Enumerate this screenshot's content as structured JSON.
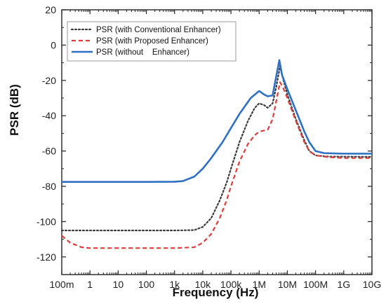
{
  "chart_data": {
    "type": "line",
    "xscale": "log",
    "xlabel": "Frequency (Hz)",
    "ylabel": "PSR (dB)",
    "xlim": [
      0.1,
      10000000000
    ],
    "ylim": [
      -130,
      20
    ],
    "grid": false,
    "legend_position": "top-left",
    "x_ticks": [
      0.1,
      1,
      10,
      100,
      1000,
      10000,
      100000,
      1000000,
      10000000,
      100000000,
      1000000000,
      10000000000
    ],
    "x_tick_labels": [
      "100m",
      "1",
      "10",
      "100",
      "1k",
      "10k",
      "100k",
      "1M",
      "10M",
      "100M",
      "1G",
      "10G"
    ],
    "y_ticks": [
      20,
      0,
      -20,
      -40,
      -60,
      -80,
      -100,
      -120
    ],
    "y_tick_labels": [
      "20",
      "0",
      "-20",
      "-40",
      "-60",
      "-80",
      "-100",
      "-120"
    ],
    "series": [
      {
        "name": "PSR (with Conventional Enhancer)",
        "color": "#3a3a3a",
        "style": "dotted",
        "points": [
          [
            0.1,
            -105
          ],
          [
            1,
            -105
          ],
          [
            10,
            -105
          ],
          [
            100,
            -105
          ],
          [
            1000,
            -105
          ],
          [
            5000,
            -104.8
          ],
          [
            10000,
            -103
          ],
          [
            20000,
            -98
          ],
          [
            40000,
            -88
          ],
          [
            70000,
            -78
          ],
          [
            100000,
            -70
          ],
          [
            200000,
            -55
          ],
          [
            400000,
            -43
          ],
          [
            700000,
            -35.5
          ],
          [
            1000000,
            -33
          ],
          [
            1500000,
            -34
          ],
          [
            2000000,
            -35.5
          ],
          [
            3000000,
            -33
          ],
          [
            4000000,
            -24
          ],
          [
            5500000,
            -12
          ],
          [
            7000000,
            -19
          ],
          [
            10000000,
            -28
          ],
          [
            20000000,
            -42
          ],
          [
            40000000,
            -54
          ],
          [
            60000000,
            -60
          ],
          [
            100000000,
            -62.5
          ],
          [
            300000000,
            -63.2
          ],
          [
            1000000000,
            -63.2
          ],
          [
            10000000000,
            -63.3
          ]
        ]
      },
      {
        "name": "PSR (with Proposed Enhancer)",
        "color": "#e03c3c",
        "style": "dashed",
        "points": [
          [
            0.1,
            -108
          ],
          [
            0.2,
            -112
          ],
          [
            0.5,
            -114.5
          ],
          [
            1,
            -115
          ],
          [
            10,
            -115
          ],
          [
            100,
            -115
          ],
          [
            1000,
            -115
          ],
          [
            5000,
            -114.5
          ],
          [
            10000,
            -112
          ],
          [
            20000,
            -107
          ],
          [
            40000,
            -98
          ],
          [
            70000,
            -88
          ],
          [
            100000,
            -80
          ],
          [
            200000,
            -66
          ],
          [
            400000,
            -56
          ],
          [
            700000,
            -51
          ],
          [
            1000000,
            -49
          ],
          [
            2000000,
            -48
          ],
          [
            3000000,
            -42
          ],
          [
            4000000,
            -32
          ],
          [
            5500000,
            -21
          ],
          [
            7000000,
            -24
          ],
          [
            10000000,
            -30
          ],
          [
            20000000,
            -43
          ],
          [
            40000000,
            -55
          ],
          [
            60000000,
            -60
          ],
          [
            100000000,
            -62.5
          ],
          [
            300000000,
            -63.5
          ],
          [
            1000000000,
            -64
          ],
          [
            10000000000,
            -64
          ]
        ]
      },
      {
        "name": "PSR (without    Enhancer)",
        "color": "#2f6fc4",
        "style": "solid",
        "points": [
          [
            0.1,
            -77.5
          ],
          [
            1,
            -77.5
          ],
          [
            10,
            -77.5
          ],
          [
            100,
            -77.5
          ],
          [
            1000,
            -77.4
          ],
          [
            2000,
            -77
          ],
          [
            5000,
            -74.5
          ],
          [
            10000,
            -70
          ],
          [
            20000,
            -64
          ],
          [
            50000,
            -55
          ],
          [
            100000,
            -47
          ],
          [
            200000,
            -39
          ],
          [
            500000,
            -30
          ],
          [
            1000000,
            -26
          ],
          [
            1500000,
            -28
          ],
          [
            2000000,
            -29
          ],
          [
            3000000,
            -28.5
          ],
          [
            4000000,
            -18
          ],
          [
            5200000,
            -8.5
          ],
          [
            6500000,
            -17
          ],
          [
            10000000,
            -25
          ],
          [
            20000000,
            -37
          ],
          [
            40000000,
            -49
          ],
          [
            60000000,
            -55
          ],
          [
            100000000,
            -60
          ],
          [
            200000000,
            -61.2
          ],
          [
            1000000000,
            -61.5
          ],
          [
            10000000000,
            -61.5
          ]
        ]
      }
    ]
  }
}
